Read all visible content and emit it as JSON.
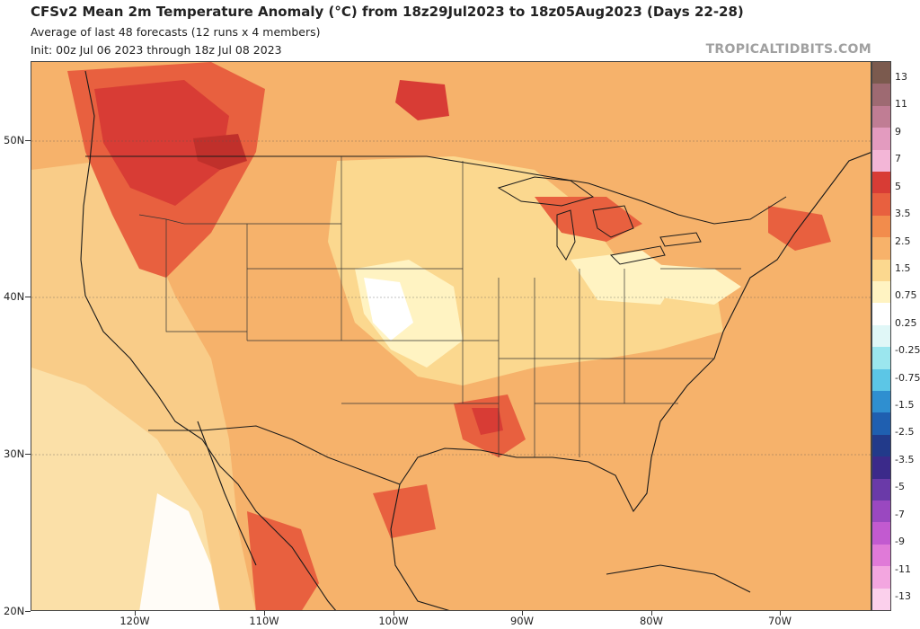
{
  "header": {
    "title": "CFSv2 Mean 2m Temperature Anomaly (°C) from 18z29Jul2023 to 18z05Aug2023 (Days 22-28)",
    "subtitle1": "Average of last 48 forecasts (12 runs x 4 members)",
    "subtitle2": "Init: 00z Jul 06 2023 through 18z Jul 08 2023",
    "credit": "TROPICALTIDBITS.COM"
  },
  "map": {
    "lat_labels": [
      "50N",
      "40N",
      "30N",
      "20N"
    ],
    "lon_labels": [
      "120W",
      "110W",
      "100W",
      "90W",
      "80W",
      "70W"
    ]
  },
  "colorbar": {
    "labels": [
      "13",
      "11",
      "9",
      "7",
      "5",
      "3.5",
      "2.5",
      "1.5",
      "0.75",
      "0.25",
      "-0.25",
      "-0.75",
      "-1.5",
      "-2.5",
      "-3.5",
      "-5",
      "-7",
      "-9",
      "-11",
      "-13"
    ],
    "colors": [
      "#7b5a4e",
      "#9e6a72",
      "#c07d94",
      "#e39bbf",
      "#f3b6d7",
      "#d83c35",
      "#e8603f",
      "#f28c4c",
      "#f7b26a",
      "#fbd88f",
      "#fff3c2",
      "#ffffff",
      "#e0f7f7",
      "#9be6ee",
      "#5cc6e6",
      "#2f8fd0",
      "#1f5fb0",
      "#223a8a",
      "#3b2a8a",
      "#6a3aa8",
      "#9a48c0",
      "#c25ad0",
      "#e07ad8",
      "#f3a6e0",
      "#fbd0ec"
    ]
  }
}
